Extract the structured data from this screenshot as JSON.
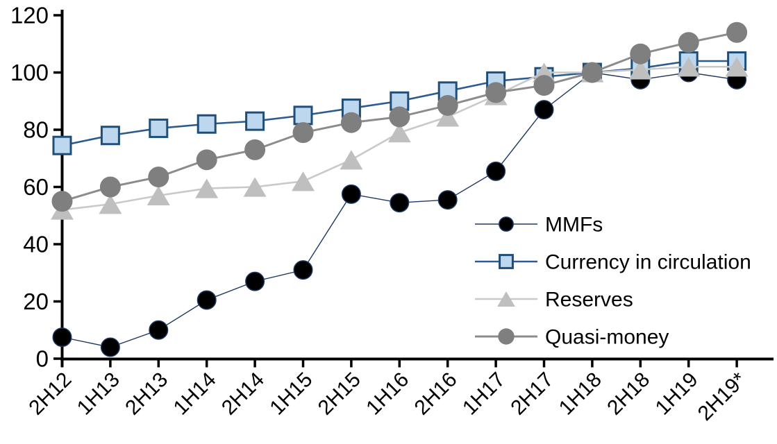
{
  "chart_data": {
    "type": "line",
    "title": "",
    "xlabel": "",
    "ylabel": "",
    "categories": [
      "2H12",
      "1H13",
      "2H13",
      "1H14",
      "2H14",
      "1H15",
      "2H15",
      "1H16",
      "2H16",
      "1H17",
      "2H17",
      "1H18",
      "2H18",
      "1H19",
      "2H19*"
    ],
    "series": [
      {
        "name": "MMFs",
        "marker": "circle",
        "line_color": "#1F3864",
        "line_width": 1.4,
        "marker_fill": "#000000",
        "marker_stroke": "#1F3864",
        "marker_stroke_width": 1.5,
        "marker_size": 28,
        "values": [
          7.5,
          4,
          10,
          20.5,
          27,
          31,
          57.5,
          54.5,
          55.5,
          65.5,
          87,
          100,
          97.5,
          100,
          97.5
        ]
      },
      {
        "name": "Currency in circulation",
        "marker": "square",
        "line_color": "#2E5B8F",
        "line_width": 2.6,
        "marker_fill": "#BDD7EE",
        "marker_stroke": "#1F4E79",
        "marker_stroke_width": 3,
        "marker_size": 28,
        "values": [
          74.5,
          78,
          80.5,
          82,
          83,
          85,
          87.5,
          90,
          93.5,
          97,
          98.5,
          100,
          101.5,
          104,
          104
        ]
      },
      {
        "name": "Reserves",
        "marker": "triangle",
        "line_color": "#C9C9C9",
        "line_width": 2.6,
        "marker_fill": "#BFBFBF",
        "marker_stroke": "#BFBFBF",
        "marker_stroke_width": 0,
        "marker_size": 30,
        "values": [
          52,
          54,
          57,
          59.5,
          60,
          62,
          69.5,
          79,
          84.5,
          92,
          100,
          100,
          101,
          102,
          102
        ]
      },
      {
        "name": "Quasi-money",
        "marker": "circle",
        "line_color": "#8C8C8C",
        "line_width": 3,
        "marker_fill": "#7F7F7F",
        "marker_stroke": "#7F7F7F",
        "marker_stroke_width": 0,
        "marker_size": 30,
        "values": [
          55,
          60,
          63.5,
          69.5,
          73,
          79,
          82.5,
          84.5,
          88.5,
          93,
          95.5,
          100,
          106.5,
          110.5,
          114
        ]
      }
    ],
    "ylim": [
      0,
      120
    ],
    "yticks": [
      0,
      20,
      40,
      60,
      80,
      100,
      120
    ],
    "grid": false,
    "legend_position": "inside-right",
    "axis_color": "#000000",
    "text_color": "#000000"
  }
}
